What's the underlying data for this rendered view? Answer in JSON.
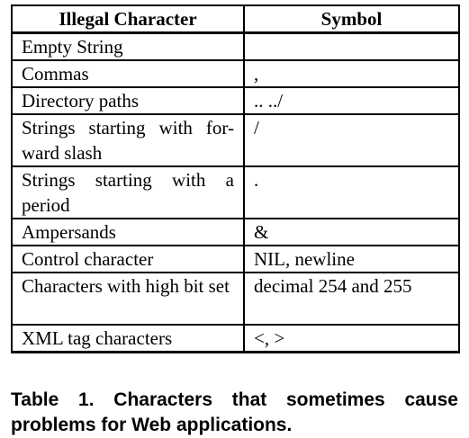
{
  "table": {
    "headers": [
      "Illegal Character",
      "Symbol"
    ],
    "rows": [
      {
        "character": "Empty String",
        "symbol": ""
      },
      {
        "character": "Commas",
        "symbol": ","
      },
      {
        "character": "Directory paths",
        "symbol": ".. ../"
      },
      {
        "character": "Strings starting with for-ward slash",
        "symbol": "/"
      },
      {
        "character": "Strings starting with a period",
        "symbol": "."
      },
      {
        "character": "Ampersands",
        "symbol": "&"
      },
      {
        "character": "Control character",
        "symbol": "NIL, newline"
      },
      {
        "character": "Characters with high bit set",
        "symbol": "decimal 254 and 255"
      },
      {
        "character": "XML tag characters",
        "symbol": "<, >"
      }
    ]
  },
  "caption": "Table 1. Characters that sometimes cause problems for Web applications."
}
